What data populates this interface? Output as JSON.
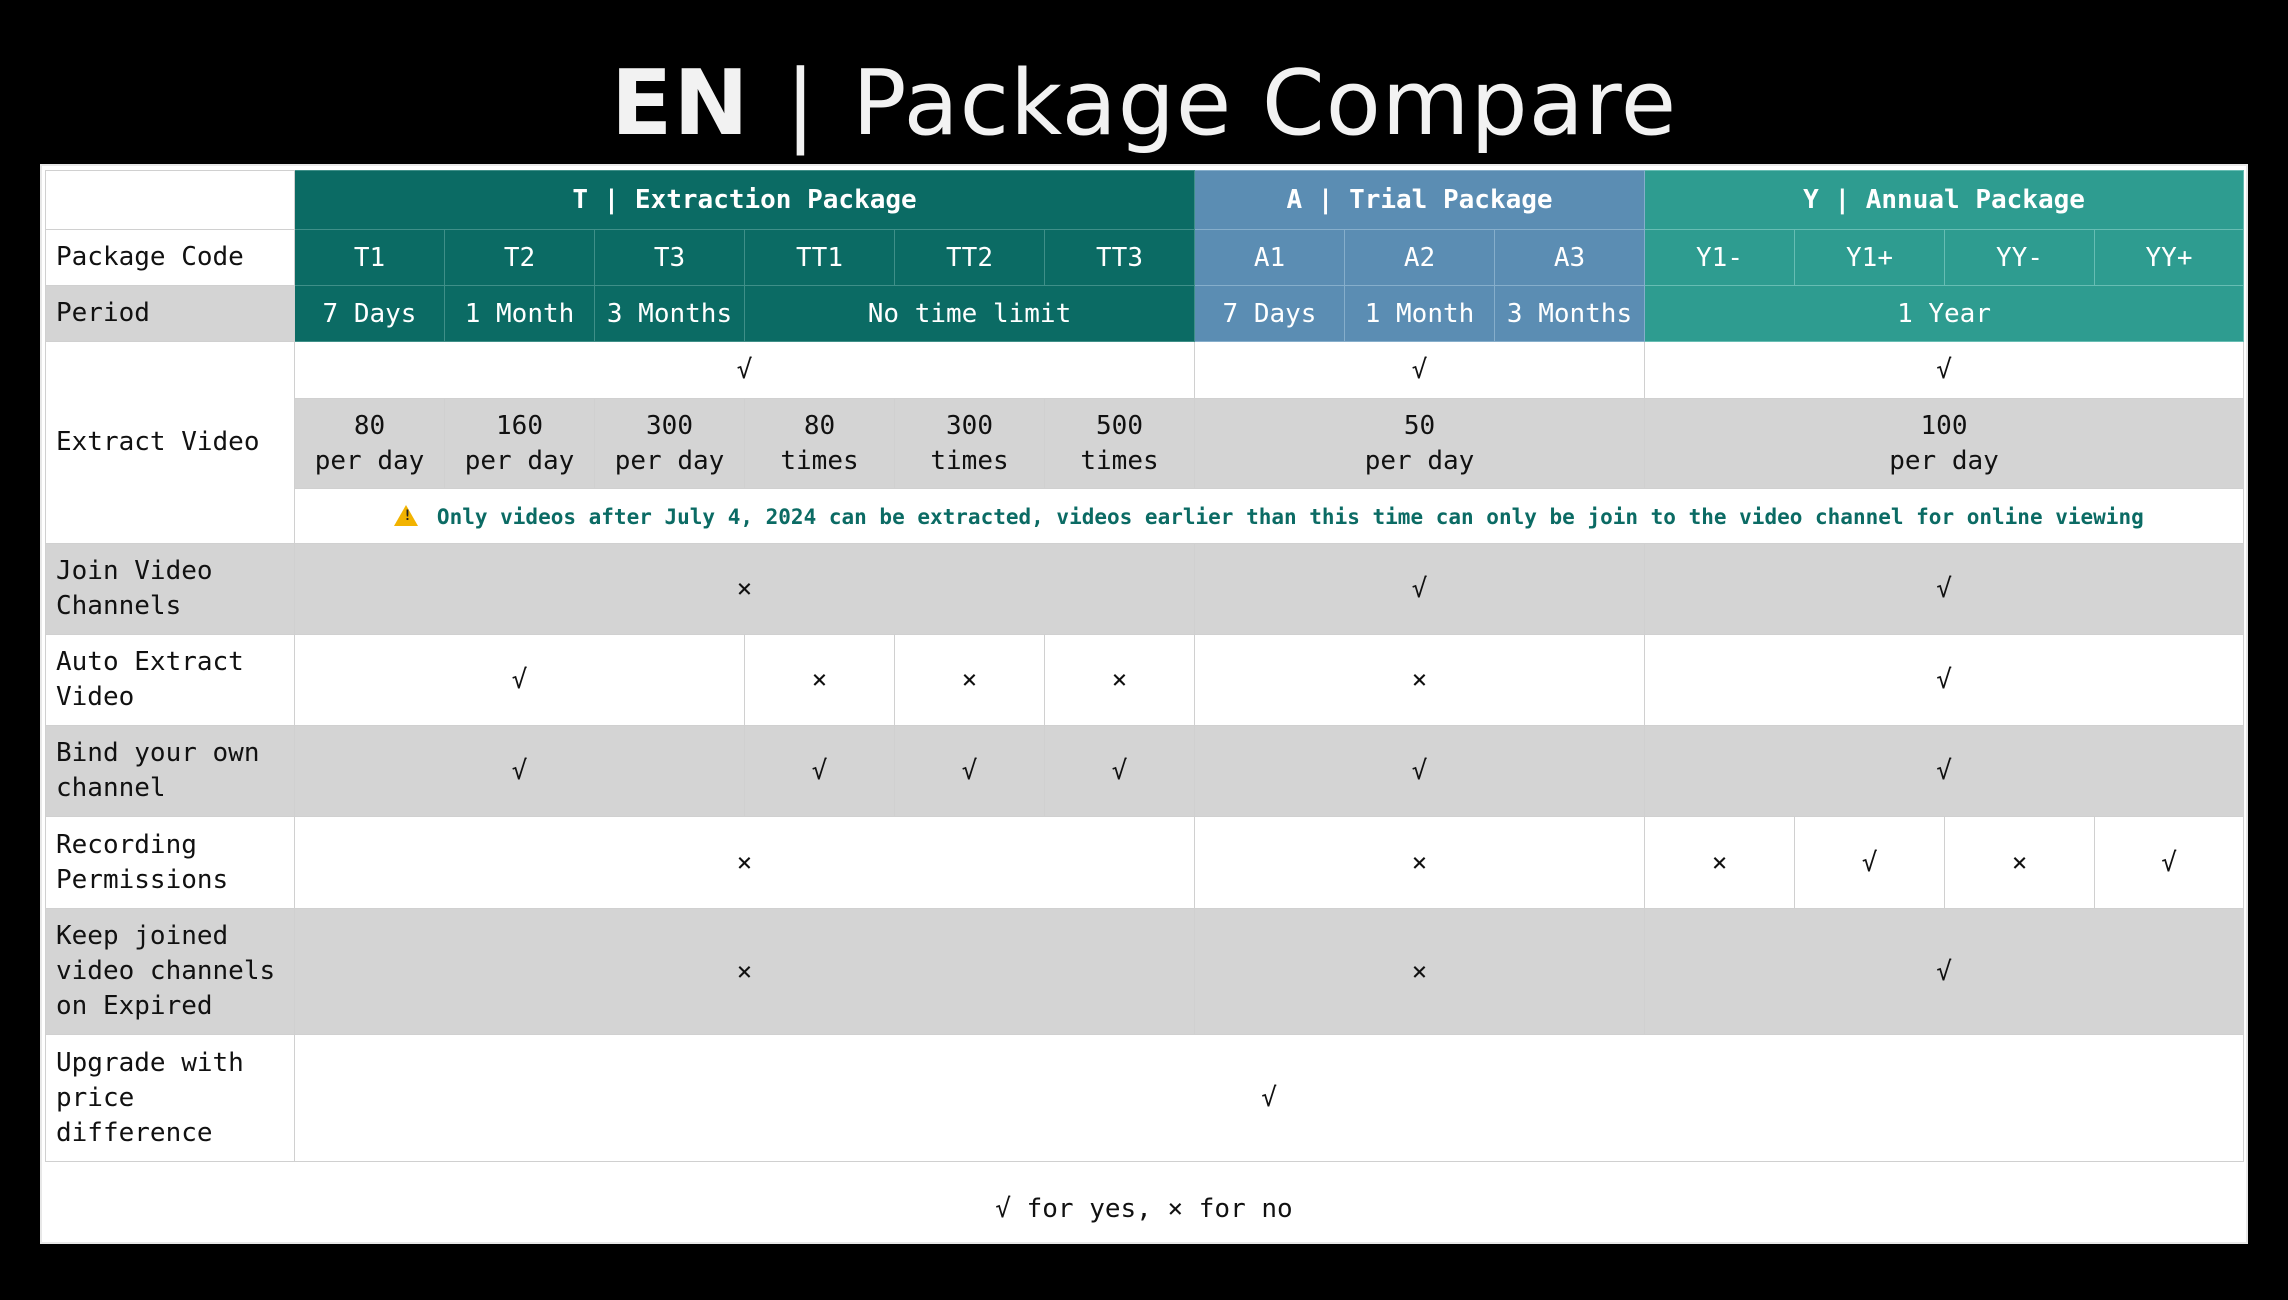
{
  "title": {
    "en": "EN",
    "sep": "|",
    "rest": "Package Compare"
  },
  "groups": {
    "t": "T | Extraction Package",
    "a": "A | Trial Package",
    "y": "Y | Annual Package"
  },
  "rows": {
    "code_label": "Package Code",
    "period_label": "Period",
    "extract_label": "Extract Video",
    "join_label": "Join Video Channels",
    "auto_label": "Auto Extract Video",
    "bind_label": "Bind your own channel",
    "rec_label": "Recording Permissions",
    "keep_label": "Keep joined video channels on Expired",
    "upgrade_label": "Upgrade with price difference"
  },
  "codes": [
    "T1",
    "T2",
    "T3",
    "TT1",
    "TT2",
    "TT3",
    "A1",
    "A2",
    "A3",
    "Y1-",
    "Y1+",
    "YY-",
    "YY+"
  ],
  "periods": {
    "t1": "7 Days",
    "t2": "1 Month",
    "t3": "3 Months",
    "tt": "No time limit",
    "a1": "7 Days",
    "a2": "1 Month",
    "a3": "3 Months",
    "y": "1 Year"
  },
  "extract": {
    "t_check": "√",
    "a_check": "√",
    "y_check": "√",
    "limits": {
      "t1_a": "80",
      "t1_b": "per day",
      "t2_a": "160",
      "t2_b": "per day",
      "t3_a": "300",
      "t3_b": "per day",
      "tt1_a": "80",
      "tt1_b": "times",
      "tt2_a": "300",
      "tt2_b": "times",
      "tt3_a": "500",
      "tt3_b": "times",
      "a_a": "50",
      "a_b": "per day",
      "y_a": "100",
      "y_b": "per day"
    },
    "notice": "Only videos after July 4, 2024 can be extracted, videos earlier than this time can only be join to the video channel for online viewing"
  },
  "join": {
    "t": "×",
    "a": "√",
    "y": "√"
  },
  "auto": {
    "t": "√",
    "tt1": "×",
    "tt2": "×",
    "tt3": "×",
    "a": "×",
    "y": "√"
  },
  "bind": {
    "t": "√",
    "tt1": "√",
    "tt2": "√",
    "tt3": "√",
    "a": "√",
    "y": "√"
  },
  "rec": {
    "t": "×",
    "a": "×",
    "y1m": "×",
    "y1p": "√",
    "yym": "×",
    "yyp": "√"
  },
  "keep": {
    "t": "×",
    "a": "×",
    "y": "√"
  },
  "upgrade": {
    "all": "√"
  },
  "footer": "√ for yes, × for no",
  "colors": {
    "t": "#0b6b64",
    "a": "#5b8db3",
    "y": "#2e9c90",
    "gray": "#d4d4d4"
  }
}
